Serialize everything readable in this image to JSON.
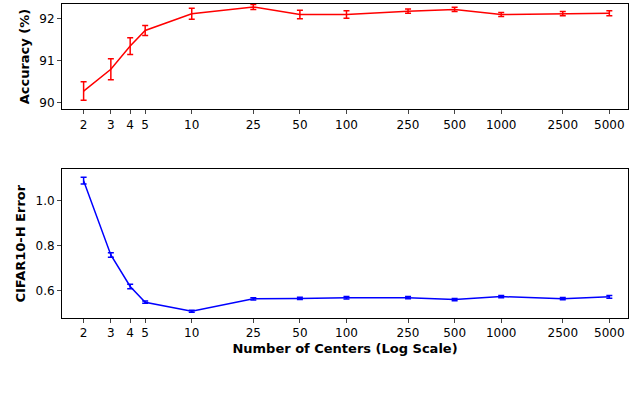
{
  "chart_data": [
    {
      "type": "line",
      "log": "x",
      "grid": false,
      "x": [
        2,
        3,
        4,
        5,
        10,
        25,
        50,
        100,
        250,
        500,
        1000,
        2500,
        5000
      ],
      "values": [
        90.28,
        90.8,
        91.35,
        91.72,
        92.12,
        92.28,
        92.1,
        92.1,
        92.18,
        92.22,
        92.1,
        92.12,
        92.13
      ],
      "errors": [
        0.22,
        0.25,
        0.2,
        0.12,
        0.13,
        0.06,
        0.1,
        0.09,
        0.05,
        0.05,
        0.05,
        0.05,
        0.06
      ],
      "color": "#ff0000",
      "ylabel": "Accuracy (%)",
      "xlim": [
        1.45,
        6600
      ],
      "xticks": [
        2,
        3,
        4,
        5,
        10,
        25,
        50,
        100,
        250,
        500,
        1000,
        2500,
        5000
      ],
      "ylim": [
        89.85,
        92.35
      ],
      "yticks": [
        90,
        91,
        92
      ]
    },
    {
      "type": "line",
      "log": "x",
      "grid": false,
      "x": [
        2,
        3,
        4,
        5,
        10,
        25,
        50,
        100,
        250,
        500,
        1000,
        2500,
        5000
      ],
      "values": [
        1.09,
        0.76,
        0.62,
        0.55,
        0.51,
        0.565,
        0.567,
        0.57,
        0.57,
        0.562,
        0.575,
        0.566,
        0.574
      ],
      "errors": [
        0.015,
        0.01,
        0.01,
        0.005,
        0.004,
        0.005,
        0.005,
        0.006,
        0.005,
        0.005,
        0.005,
        0.005,
        0.006
      ],
      "color": "#0000ff",
      "ylabel": "CIFAR10-H Error",
      "xlabel": "Number of Centers (Log Scale)",
      "xlim": [
        1.45,
        6600
      ],
      "xticks": [
        2,
        3,
        4,
        5,
        10,
        25,
        50,
        100,
        250,
        500,
        1000,
        2500,
        5000
      ],
      "ylim": [
        0.48,
        1.14
      ],
      "yticks": [
        0.6,
        0.8,
        1.0
      ]
    }
  ]
}
